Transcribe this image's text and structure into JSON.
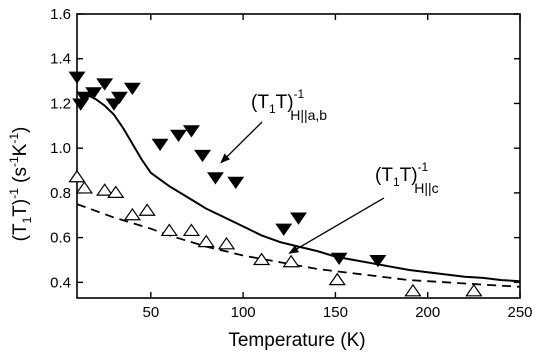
{
  "chart_data": {
    "type": "scatter",
    "xlabel": "Temperature (K)",
    "xlim": [
      10,
      250
    ],
    "ylim": [
      0.33,
      1.6
    ],
    "x_ticks": [
      50,
      100,
      150,
      200,
      250
    ],
    "y_ticks": [
      0.4,
      0.6,
      0.8,
      1.0,
      1.2,
      1.4,
      1.6
    ],
    "ylabel": {
      "base": "(T",
      "sub1": "1",
      "mid": "T)",
      "sup1": "-1",
      "unit_open": " (s",
      "sup2": "-1",
      "unit_mid": "K",
      "sup3": "-1",
      "unit_close": ")"
    },
    "annotations": [
      {
        "base": "(T",
        "sub": "1",
        "mid": "T)",
        "sup": "-1",
        "field": "H||a,b",
        "target_series": 0
      },
      {
        "base": "(T",
        "sub": "1",
        "mid": "T)",
        "sup": "-1",
        "field": "H||c",
        "target_series": 1
      }
    ],
    "series": [
      {
        "marker": "filled-down-triangle",
        "points": [
          [
            10,
            1.32
          ],
          [
            12,
            1.2
          ],
          [
            14,
            1.23
          ],
          [
            19,
            1.25
          ],
          [
            25,
            1.29
          ],
          [
            30,
            1.2
          ],
          [
            33,
            1.23
          ],
          [
            40,
            1.27
          ],
          [
            55,
            1.02
          ],
          [
            65,
            1.06
          ],
          [
            72,
            1.08
          ],
          [
            78,
            0.97
          ],
          [
            85,
            0.87
          ],
          [
            96,
            0.85
          ],
          [
            122,
            0.64
          ],
          [
            130,
            0.69
          ],
          [
            152,
            0.51
          ],
          [
            173,
            0.5
          ]
        ]
      },
      {
        "marker": "open-up-triangle",
        "points": [
          [
            10,
            0.87
          ],
          [
            14,
            0.82
          ],
          [
            25,
            0.81
          ],
          [
            31,
            0.8
          ],
          [
            40,
            0.7
          ],
          [
            48,
            0.72
          ],
          [
            60,
            0.63
          ],
          [
            72,
            0.63
          ],
          [
            80,
            0.58
          ],
          [
            91,
            0.57
          ],
          [
            110,
            0.5
          ],
          [
            126,
            0.49
          ],
          [
            151,
            0.41
          ],
          [
            192,
            0.36
          ],
          [
            225,
            0.36
          ]
        ]
      }
    ],
    "fit_lines": [
      {
        "style": "solid",
        "points": [
          [
            10,
            1.25
          ],
          [
            15,
            1.24
          ],
          [
            20,
            1.22
          ],
          [
            25,
            1.19
          ],
          [
            30,
            1.15
          ],
          [
            35,
            1.09
          ],
          [
            40,
            1.02
          ],
          [
            45,
            0.95
          ],
          [
            50,
            0.89
          ],
          [
            60,
            0.83
          ],
          [
            70,
            0.78
          ],
          [
            80,
            0.73
          ],
          [
            90,
            0.69
          ],
          [
            100,
            0.65
          ],
          [
            110,
            0.61
          ],
          [
            120,
            0.58
          ],
          [
            130,
            0.56
          ],
          [
            140,
            0.54
          ],
          [
            150,
            0.515
          ],
          [
            160,
            0.5
          ],
          [
            170,
            0.485
          ],
          [
            180,
            0.47
          ],
          [
            190,
            0.455
          ],
          [
            200,
            0.445
          ],
          [
            210,
            0.435
          ],
          [
            220,
            0.425
          ],
          [
            230,
            0.42
          ],
          [
            240,
            0.41
          ],
          [
            250,
            0.405
          ]
        ]
      },
      {
        "style": "dashed",
        "points": [
          [
            10,
            0.75
          ],
          [
            20,
            0.72
          ],
          [
            30,
            0.69
          ],
          [
            40,
            0.665
          ],
          [
            50,
            0.64
          ],
          [
            60,
            0.61
          ],
          [
            70,
            0.585
          ],
          [
            80,
            0.56
          ],
          [
            90,
            0.54
          ],
          [
            100,
            0.52
          ],
          [
            110,
            0.505
          ],
          [
            120,
            0.49
          ],
          [
            130,
            0.475
          ],
          [
            140,
            0.46
          ],
          [
            150,
            0.45
          ],
          [
            160,
            0.44
          ],
          [
            170,
            0.43
          ],
          [
            180,
            0.42
          ],
          [
            190,
            0.41
          ],
          [
            200,
            0.405
          ],
          [
            210,
            0.4
          ],
          [
            220,
            0.395
          ],
          [
            230,
            0.39
          ],
          [
            240,
            0.385
          ],
          [
            250,
            0.38
          ]
        ]
      }
    ]
  }
}
